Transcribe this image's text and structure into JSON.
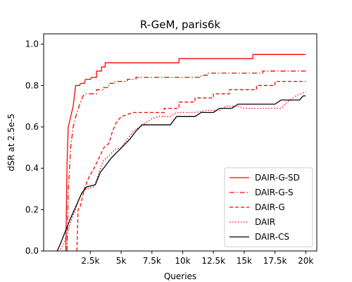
{
  "chart_data": {
    "type": "line",
    "title": "R-GeM, paris6k",
    "xlabel": "Queries",
    "ylabel": "dSR at 2.5e-5",
    "xlim": [
      -1300,
      20900
    ],
    "ylim": [
      0,
      1.05
    ],
    "x_ticks": [
      2500,
      5000,
      7500,
      10000,
      12500,
      15000,
      17500,
      20000
    ],
    "x_tick_labels": [
      "2.5k",
      "5k",
      "7.5k",
      "10k",
      "12.5k",
      "15k",
      "17.5k",
      "20k"
    ],
    "y_ticks": [
      0.0,
      0.2,
      0.4,
      0.6,
      0.8,
      1.0
    ],
    "y_tick_labels": [
      "0.0",
      "0.2",
      "0.4",
      "0.6",
      "0.8",
      "1.0"
    ],
    "grid": false,
    "legend_position": "lower-right",
    "series": [
      {
        "name": "DAIR-G-SD",
        "color": "#ff0000",
        "dash": "solid",
        "points": [
          [
            500,
            0
          ],
          [
            600,
            0.42
          ],
          [
            700,
            0.6
          ],
          [
            900,
            0.65
          ],
          [
            1100,
            0.7
          ],
          [
            1300,
            0.8
          ],
          [
            1600,
            0.8
          ],
          [
            1700,
            0.81
          ],
          [
            2000,
            0.81
          ],
          [
            2100,
            0.83
          ],
          [
            2500,
            0.83
          ],
          [
            2600,
            0.84
          ],
          [
            3000,
            0.84
          ],
          [
            3000,
            0.87
          ],
          [
            3400,
            0.87
          ],
          [
            3400,
            0.89
          ],
          [
            3700,
            0.89
          ],
          [
            3700,
            0.91
          ],
          [
            9700,
            0.91
          ],
          [
            9700,
            0.93
          ],
          [
            15700,
            0.93
          ],
          [
            15700,
            0.95
          ],
          [
            20000,
            0.95
          ]
        ]
      },
      {
        "name": "DAIR-G-S",
        "color": "#ff0000",
        "dash": "dashdot",
        "points": [
          [
            600,
            0
          ],
          [
            700,
            0.3
          ],
          [
            900,
            0.5
          ],
          [
            1100,
            0.6
          ],
          [
            1400,
            0.67
          ],
          [
            1700,
            0.72
          ],
          [
            1900,
            0.75
          ],
          [
            2100,
            0.76
          ],
          [
            3000,
            0.76
          ],
          [
            3000,
            0.78
          ],
          [
            3500,
            0.78
          ],
          [
            3500,
            0.79
          ],
          [
            4000,
            0.79
          ],
          [
            4000,
            0.81
          ],
          [
            4500,
            0.81
          ],
          [
            4500,
            0.82
          ],
          [
            5500,
            0.82
          ],
          [
            5500,
            0.83
          ],
          [
            6200,
            0.83
          ],
          [
            6200,
            0.84
          ],
          [
            11500,
            0.84
          ],
          [
            11500,
            0.85
          ],
          [
            12000,
            0.85
          ],
          [
            12000,
            0.86
          ],
          [
            16500,
            0.86
          ],
          [
            16500,
            0.87
          ],
          [
            20000,
            0.87
          ]
        ]
      },
      {
        "name": "DAIR-G",
        "color": "#ff0000",
        "dash": "dashed",
        "points": [
          [
            1400,
            0
          ],
          [
            1500,
            0.2
          ],
          [
            1700,
            0.22
          ],
          [
            2000,
            0.3
          ],
          [
            2400,
            0.36
          ],
          [
            2800,
            0.4
          ],
          [
            3200,
            0.45
          ],
          [
            3600,
            0.5
          ],
          [
            4000,
            0.52
          ],
          [
            4300,
            0.58
          ],
          [
            4600,
            0.62
          ],
          [
            5000,
            0.65
          ],
          [
            5500,
            0.66
          ],
          [
            6000,
            0.67
          ],
          [
            8500,
            0.67
          ],
          [
            8500,
            0.69
          ],
          [
            9700,
            0.69
          ],
          [
            9700,
            0.72
          ],
          [
            11000,
            0.72
          ],
          [
            11000,
            0.74
          ],
          [
            12500,
            0.74
          ],
          [
            12500,
            0.76
          ],
          [
            13800,
            0.76
          ],
          [
            13800,
            0.78
          ],
          [
            16000,
            0.78
          ],
          [
            16000,
            0.8
          ],
          [
            17500,
            0.8
          ],
          [
            17500,
            0.82
          ],
          [
            20000,
            0.82
          ]
        ]
      },
      {
        "name": "DAIR",
        "color": "#ff0000",
        "dash": "dotted",
        "points": [
          [
            -300,
            0
          ],
          [
            0,
            0
          ],
          [
            300,
            0.03
          ],
          [
            700,
            0.1
          ],
          [
            1000,
            0.16
          ],
          [
            1300,
            0.2
          ],
          [
            1500,
            0.24
          ],
          [
            1800,
            0.28
          ],
          [
            2200,
            0.3
          ],
          [
            2800,
            0.31
          ],
          [
            3200,
            0.38
          ],
          [
            3600,
            0.44
          ],
          [
            4000,
            0.46
          ],
          [
            4500,
            0.49
          ],
          [
            5000,
            0.5
          ],
          [
            5500,
            0.54
          ],
          [
            6000,
            0.58
          ],
          [
            6500,
            0.6
          ],
          [
            7000,
            0.62
          ],
          [
            7500,
            0.64
          ],
          [
            8000,
            0.65
          ],
          [
            9000,
            0.65
          ],
          [
            9500,
            0.67
          ],
          [
            11000,
            0.67
          ],
          [
            12000,
            0.68
          ],
          [
            13000,
            0.68
          ],
          [
            13500,
            0.7
          ],
          [
            14500,
            0.7
          ],
          [
            15000,
            0.69
          ],
          [
            18000,
            0.69
          ],
          [
            18500,
            0.72
          ],
          [
            19200,
            0.75
          ],
          [
            20000,
            0.77
          ]
        ]
      },
      {
        "name": "DAIR-CS",
        "color": "#000000",
        "dash": "solid",
        "points": [
          [
            -200,
            0
          ],
          [
            100,
            0.04
          ],
          [
            500,
            0.1
          ],
          [
            900,
            0.16
          ],
          [
            1200,
            0.2
          ],
          [
            1500,
            0.24
          ],
          [
            1800,
            0.28
          ],
          [
            2200,
            0.31
          ],
          [
            2900,
            0.32
          ],
          [
            3300,
            0.38
          ],
          [
            3700,
            0.41
          ],
          [
            4200,
            0.45
          ],
          [
            4700,
            0.48
          ],
          [
            5200,
            0.51
          ],
          [
            5700,
            0.54
          ],
          [
            6200,
            0.58
          ],
          [
            6700,
            0.61
          ],
          [
            9000,
            0.61
          ],
          [
            9500,
            0.65
          ],
          [
            11000,
            0.65
          ],
          [
            11500,
            0.67
          ],
          [
            12500,
            0.67
          ],
          [
            13000,
            0.69
          ],
          [
            14000,
            0.69
          ],
          [
            14500,
            0.71
          ],
          [
            17500,
            0.71
          ],
          [
            18000,
            0.73
          ],
          [
            19500,
            0.73
          ],
          [
            19800,
            0.75
          ],
          [
            20000,
            0.75
          ]
        ]
      }
    ]
  }
}
